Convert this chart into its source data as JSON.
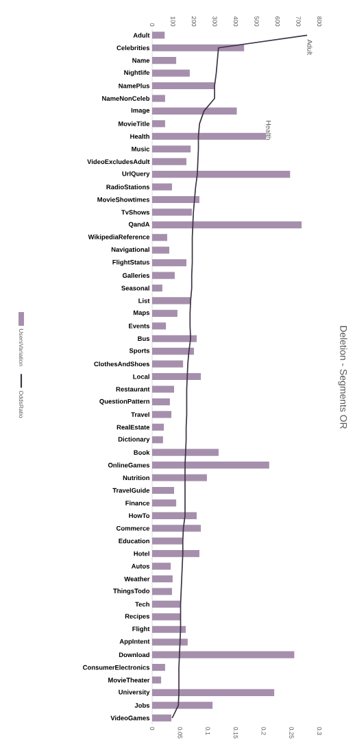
{
  "chart_data": {
    "type": "bar",
    "orientation": "horizontal",
    "title": "Deletion - Segments OR",
    "legend": "left",
    "categories": [
      "Adult",
      "Celebrities",
      "Name",
      "Nightlife",
      "NamePlus",
      "NameNonCeleb",
      "Image",
      "MovieTitle",
      "Health",
      "Music",
      "VideoExcludesAdult",
      "UrlQuery",
      "RadioStations",
      "MovieShowtimes",
      "TvShows",
      "QandA",
      "WikipediaReference",
      "Navigational",
      "FlightStatus",
      "Galleries",
      "Seasonal",
      "List",
      "Maps",
      "Events",
      "Bus",
      "Sports",
      "ClothesAndShoes",
      "Local",
      "Restaurant",
      "QuestionPattern",
      "Travel",
      "RealEstate",
      "Dictionary",
      "Book",
      "OnlineGames",
      "Nutrition",
      "TravelGuide",
      "Finance",
      "HowTo",
      "Commerce",
      "Education",
      "Hotel",
      "Autos",
      "Weather",
      "ThingsTodo",
      "Tech",
      "Recipes",
      "Flight",
      "AppIntent",
      "Download",
      "ConsumerElectronics",
      "MovieTheater",
      "University",
      "Jobs",
      "VideoGames"
    ],
    "series": [
      {
        "name": "UsersVariation",
        "color": "#a68fad",
        "axis": "x2",
        "values": [
          60,
          440,
          115,
          180,
          300,
          62,
          405,
          62,
          545,
          184,
          164,
          660,
          95,
          226,
          190,
          715,
          72,
          82,
          164,
          108,
          49,
          184,
          121,
          66,
          213,
          200,
          148,
          233,
          105,
          85,
          92,
          56,
          52,
          318,
          560,
          262,
          105,
          115,
          213,
          233,
          144,
          226,
          89,
          98,
          95,
          134,
          134,
          161,
          170,
          680,
          62,
          43,
          584,
          289,
          92
        ]
      },
      {
        "name": "OddsRatio",
        "type": "line",
        "color": "#3d3344",
        "values": [
          0.278,
          0.119,
          0.117,
          0.115,
          0.112,
          0.112,
          0.093,
          0.085,
          0.083,
          0.083,
          0.082,
          0.081,
          0.078,
          0.076,
          0.074,
          0.073,
          0.072,
          0.072,
          0.072,
          0.071,
          0.071,
          0.069,
          0.068,
          0.068,
          0.069,
          0.066,
          0.064,
          0.063,
          0.062,
          0.062,
          0.062,
          0.061,
          0.061,
          0.06,
          0.059,
          0.059,
          0.059,
          0.059,
          0.059,
          0.056,
          0.055,
          0.055,
          0.054,
          0.053,
          0.052,
          0.051,
          0.051,
          0.051,
          0.05,
          0.049,
          0.048,
          0.048,
          0.048,
          0.047,
          0.036
        ]
      }
    ],
    "xlim": [
      0,
      0.3
    ],
    "xticks": [
      0,
      0.05,
      0.1,
      0.15,
      0.2,
      0.25,
      0.3
    ],
    "x2lim": [
      0,
      800
    ],
    "x2ticks": [
      0,
      100,
      200,
      300,
      400,
      500,
      600,
      700,
      800
    ],
    "annotations": [
      "Adult",
      "Health"
    ]
  }
}
